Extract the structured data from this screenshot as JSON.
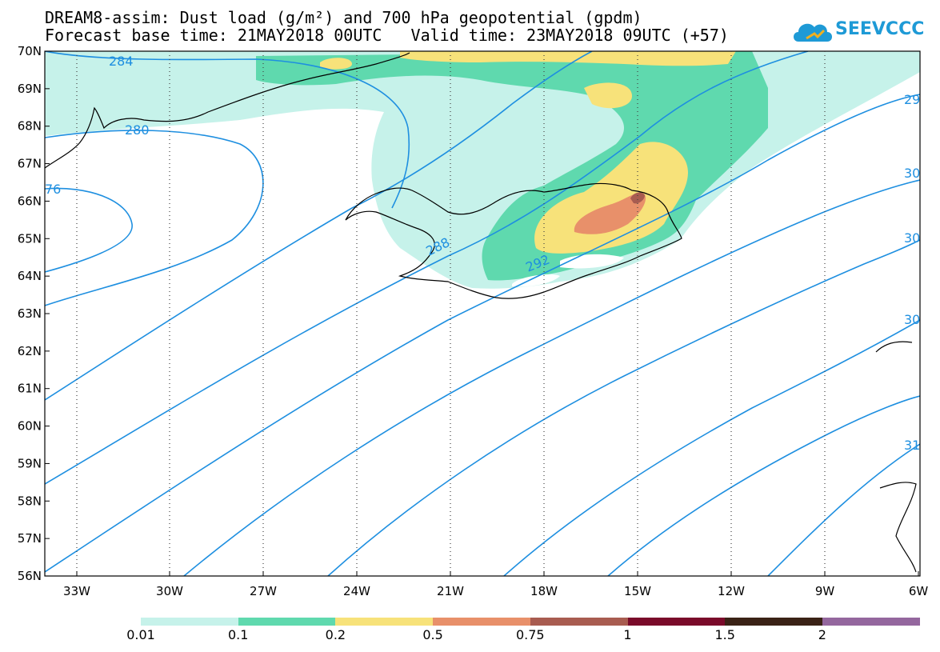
{
  "header": {
    "title_line1": "DREAM8-assim: Dust load (g/m²) and 700 hPa geopotential (gpdm)",
    "title_line2": "Forecast base time: 21MAY2018 00UTC   Valid time: 23MAY2018 09UTC (+57)"
  },
  "logo": {
    "text": "SEEVCCC",
    "icon": "cloud-icon",
    "color": "#1e9ad6"
  },
  "map": {
    "lat_labels": [
      "70N",
      "69N",
      "68N",
      "67N",
      "66N",
      "65N",
      "64N",
      "63N",
      "62N",
      "61N",
      "60N",
      "59N",
      "58N",
      "57N",
      "56N"
    ],
    "lon_labels": [
      "33W",
      "30W",
      "27W",
      "24W",
      "21W",
      "18W",
      "15W",
      "12W",
      "9W",
      "6W"
    ],
    "contour_labels": [
      "284",
      "280",
      "76",
      "288",
      "292",
      "29",
      "30",
      "30",
      "30",
      "31"
    ],
    "contour_color": "#1e8fe0",
    "coast_color": "#000000"
  },
  "colorbar": {
    "colors": [
      "#c6f2ea",
      "#5fd9ae",
      "#f7e27a",
      "#e8906a",
      "#a85c50",
      "#7a0a2a",
      "#3a2216",
      "#94679e"
    ],
    "labels": [
      "0.01",
      "0.1",
      "0.2",
      "0.5",
      "0.75",
      "1",
      "1.5",
      "2"
    ]
  }
}
